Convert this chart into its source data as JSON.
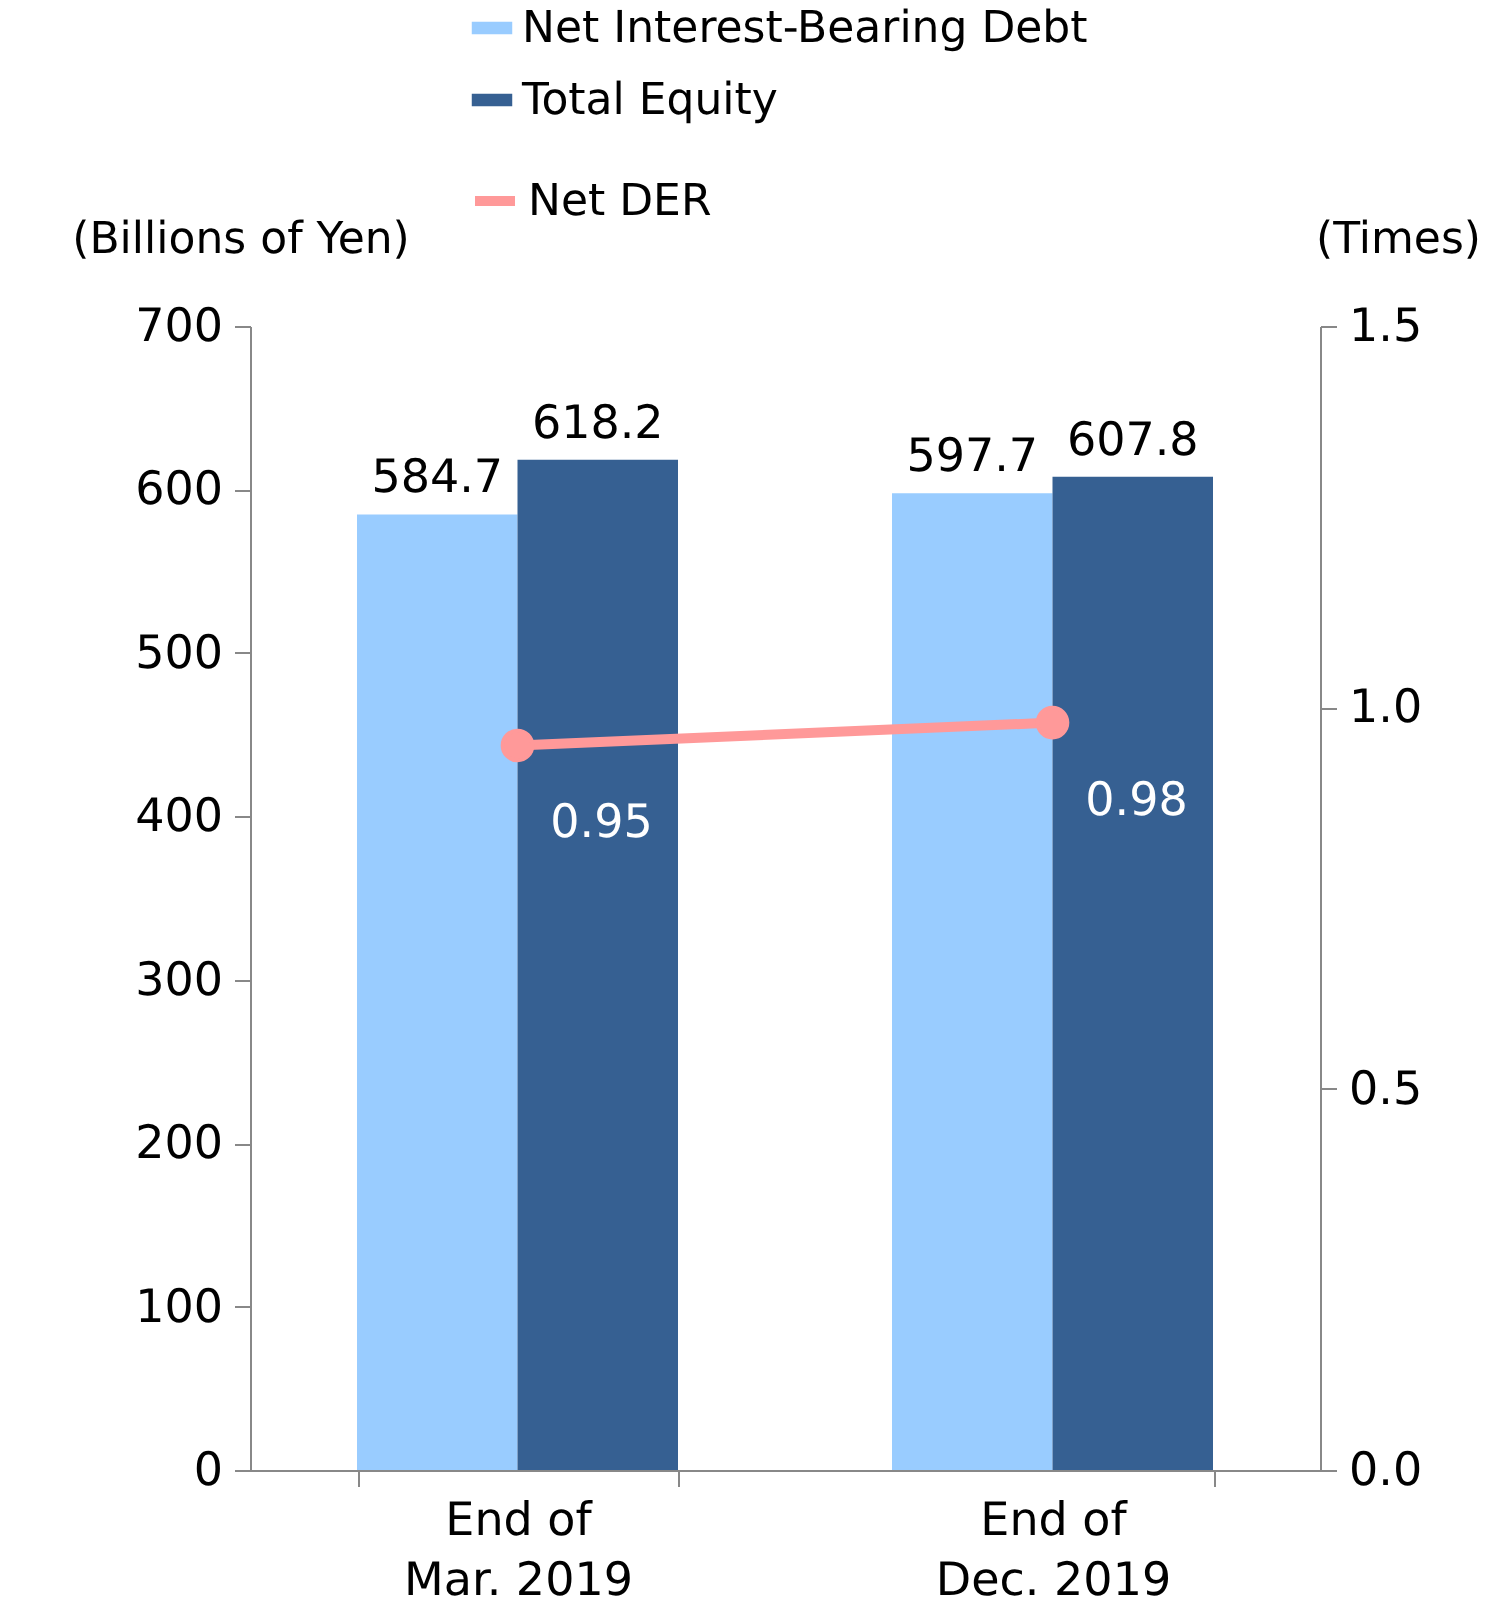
{
  "chart_data": {
    "type": "bar",
    "categories": [
      "End of\nMar. 2019",
      "End of\nDec. 2019"
    ],
    "series": [
      {
        "name": "Net Interest-Bearing Debt",
        "color": "#99ccff",
        "values": [
          584.7,
          597.7
        ]
      },
      {
        "name": "Total Equity",
        "color": "#366092",
        "values": [
          618.2,
          607.8
        ]
      },
      {
        "name": "Net DER",
        "type": "line",
        "axis": "y2",
        "color": "#ff9999",
        "values": [
          0.95,
          0.98
        ]
      }
    ],
    "ylabel": "(Billions of Yen)",
    "y2label": "(Times)",
    "ylim": [
      0,
      700
    ],
    "yticks": [
      0,
      100,
      200,
      300,
      400,
      500,
      600,
      700
    ],
    "y2lim": [
      0,
      1.5
    ],
    "y2ticks": [
      {
        "value": 0,
        "label": "0.0"
      },
      {
        "value": 0.5,
        "label": "0.5"
      },
      {
        "value": 1,
        "label": "1.0"
      },
      {
        "value": 1.5,
        "label": "1.5"
      }
    ],
    "data_labels": true,
    "grid": false,
    "legend": "top",
    "marker": "circle"
  }
}
